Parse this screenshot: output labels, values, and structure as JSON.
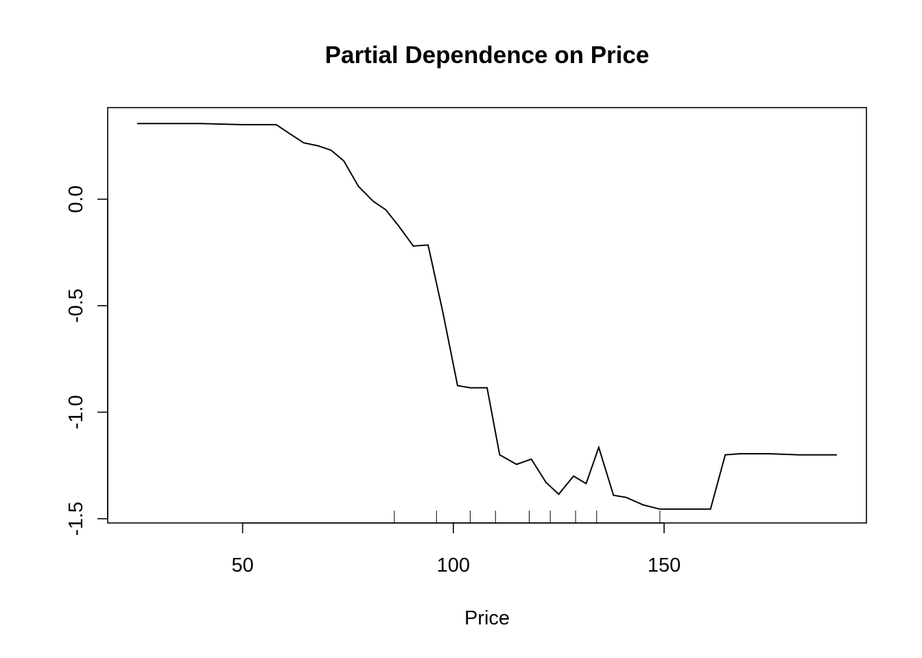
{
  "chart_data": {
    "type": "line",
    "title": "Partial Dependence on Price",
    "xlabel": "Price",
    "ylabel": "",
    "xlim": [
      18,
      198
    ],
    "ylim": [
      -1.52,
      0.43
    ],
    "xticks": [
      50,
      100,
      150
    ],
    "xtick_labels": [
      "50",
      "100",
      "150"
    ],
    "yticks": [
      -1.5,
      -1.0,
      -0.5,
      0.0
    ],
    "ytick_labels": [
      "-1.5",
      "-1.0",
      "-0.5",
      "0.0"
    ],
    "grid": false,
    "line_color": "#000000",
    "x": [
      25,
      40,
      50,
      58,
      61,
      64.5,
      68,
      71,
      74,
      77.5,
      81,
      84,
      87,
      90.5,
      94,
      97.5,
      101,
      104,
      108,
      111,
      115,
      118.5,
      122,
      125,
      128.5,
      131.5,
      134.5,
      138,
      141,
      145,
      149,
      155,
      161,
      164.5,
      168,
      175,
      182,
      191
    ],
    "y": [
      0.355,
      0.355,
      0.35,
      0.35,
      0.31,
      0.265,
      0.25,
      0.23,
      0.18,
      0.06,
      -0.01,
      -0.05,
      -0.125,
      -0.22,
      -0.215,
      -0.53,
      -0.875,
      -0.885,
      -0.885,
      -1.2,
      -1.245,
      -1.22,
      -1.33,
      -1.385,
      -1.3,
      -1.335,
      -1.165,
      -1.39,
      -1.4,
      -1.435,
      -1.455,
      -1.455,
      -1.455,
      -1.2,
      -1.195,
      -1.195,
      -1.2,
      -1.2
    ],
    "rug": [
      86,
      96,
      104,
      110,
      118,
      123,
      129,
      134,
      149
    ]
  }
}
